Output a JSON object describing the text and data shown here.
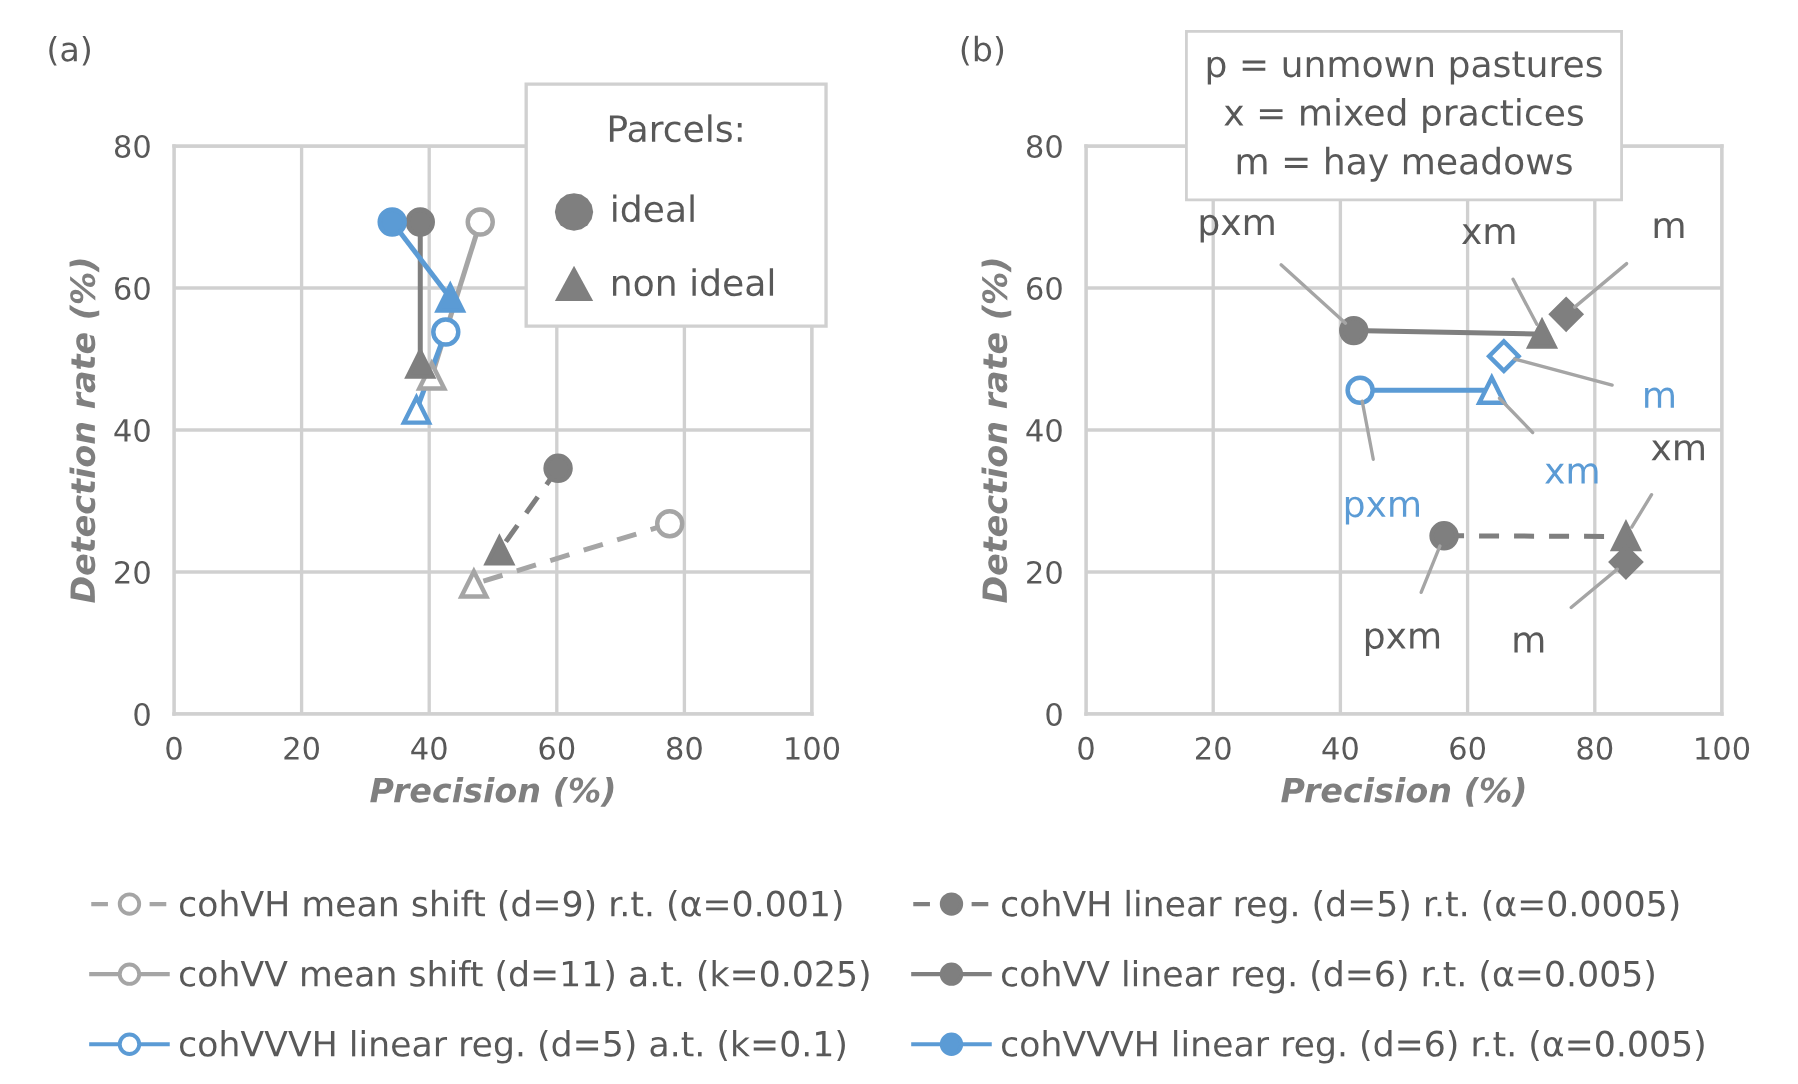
{
  "chart_data": [
    {
      "type": "line",
      "title": "(a)",
      "xlabel": "Precision (%)",
      "ylabel": "Detection rate (%)",
      "legend_title": "Parcels:",
      "annotations": [
        "ideal",
        "non ideal"
      ],
      "xlim": [
        0,
        100
      ],
      "xticks": [
        0,
        20,
        40,
        60,
        80,
        100
      ],
      "ylim": [
        0,
        80
      ],
      "yticks": [
        0,
        20,
        40,
        60,
        80
      ],
      "grid": true,
      "legend": "bottom",
      "series": [
        {
          "name": "cohVH mean shift (d=9) r.t. (α=0.001)",
          "color": "#a5a5a5",
          "x": [
            77.7,
            47
          ],
          "values": [
            26.8,
            18.3
          ],
          "colors": [
            "#ffffff",
            "#ffffff"
          ],
          "marker": [
            "circle",
            "triangle"
          ],
          "line_style": "dashed"
        },
        {
          "name": "cohVH linear reg. (d=5) r.t. (α=0.0005)",
          "color": "#7f7f7f",
          "x": [
            60.2,
            51
          ],
          "values": [
            34.6,
            23
          ],
          "colors": [
            "#7f7f7f",
            "#7f7f7f"
          ],
          "marker": [
            "circle",
            "triangle"
          ],
          "line_style": "dashed"
        },
        {
          "name": "cohVV mean shift (d=11) a.t. (k=0.025)",
          "color": "#a5a5a5",
          "x": [
            48,
            40.4
          ],
          "values": [
            69.3,
            47.6
          ],
          "colors": [
            "#ffffff",
            "#ffffff"
          ],
          "marker": [
            "circle",
            "triangle"
          ],
          "line_style": "solid"
        },
        {
          "name": "cohVV linear reg. (d=6) r.t. (α=0.005)",
          "color": "#7f7f7f",
          "x": [
            38.6,
            38.6
          ],
          "values": [
            69.3,
            49.3
          ],
          "colors": [
            "#7f7f7f",
            "#7f7f7f"
          ],
          "marker": [
            "circle",
            "triangle"
          ],
          "line_style": "solid"
        },
        {
          "name": "cohVVVH linear reg. (d=5) a.t. (k=0.1)",
          "color": "#5b9bd5",
          "x": [
            42.6,
            38
          ],
          "values": [
            53.8,
            42.8
          ],
          "colors": [
            "#ffffff",
            "#ffffff"
          ],
          "marker": [
            "circle",
            "triangle"
          ],
          "line_style": "solid"
        },
        {
          "name": "cohVVVH linear reg. (d=6) r.t. (α=0.005)",
          "color": "#5b9bd5",
          "x": [
            34.2,
            43.3
          ],
          "values": [
            69.3,
            58.6
          ],
          "colors": [
            "#5b9bd5",
            "#5b9bd5"
          ],
          "marker": [
            "circle",
            "triangle"
          ],
          "line_style": "solid"
        }
      ]
    },
    {
      "type": "line",
      "title": "(b)",
      "xlabel": "Precision (%)",
      "ylabel": "Detection rate (%)",
      "xlim": [
        0,
        100
      ],
      "xticks": [
        0,
        20,
        40,
        60,
        80,
        100
      ],
      "ylim": [
        0,
        80
      ],
      "yticks": [
        0,
        20,
        40,
        60,
        80
      ],
      "grid": true,
      "annotations": [
        "p = unmown pastures",
        "x = mixed practices",
        "m = hay meadows",
        {
          "text": "pxm",
          "x": 42.1,
          "y": 54
        },
        {
          "text": "xm",
          "x": 71.7,
          "y": 53.5
        },
        {
          "text": "m",
          "x": 75.5,
          "y": 56.3
        },
        {
          "text": "m",
          "x": 65.7,
          "y": 50.4
        },
        {
          "text": "xm",
          "x": 63.8,
          "y": 45.6
        },
        {
          "text": "pxm",
          "x": 43.1,
          "y": 45.6
        },
        {
          "text": "pxm",
          "x": 56.3,
          "y": 25.1
        },
        {
          "text": "xm",
          "x": 84.9,
          "y": 25
        },
        {
          "text": "m",
          "x": 84.9,
          "y": 21.4
        }
      ],
      "series": [
        {
          "color": "#7f7f7f",
          "x": [
            42.1,
            71.7
          ],
          "values": [
            54,
            53.5
          ],
          "colors": [
            "#7f7f7f",
            "#7f7f7f"
          ],
          "marker": [
            "circle",
            "triangle"
          ],
          "line_style": "solid"
        },
        {
          "type": "scatter",
          "color": "#7f7f7f",
          "x": [
            75.5
          ],
          "values": [
            56.3
          ],
          "colors": [
            "#7f7f7f"
          ],
          "marker": [
            "diamond"
          ]
        },
        {
          "color": "#5b9bd5",
          "x": [
            43.1,
            63.8
          ],
          "values": [
            45.6,
            45.6
          ],
          "colors": [
            "#ffffff",
            "#ffffff"
          ],
          "marker": [
            "circle",
            "triangle"
          ],
          "line_style": "solid"
        },
        {
          "type": "scatter",
          "color": "#5b9bd5",
          "x": [
            65.7
          ],
          "values": [
            50.4
          ],
          "colors": [
            "#ffffff"
          ],
          "marker": [
            "diamond"
          ]
        },
        {
          "color": "#7f7f7f",
          "x": [
            56.3,
            84.9
          ],
          "values": [
            25.1,
            25
          ],
          "colors": [
            "#7f7f7f",
            "#7f7f7f"
          ],
          "marker": [
            "circle",
            "triangle"
          ],
          "line_style": "dashed"
        },
        {
          "type": "scatter",
          "color": "#7f7f7f",
          "x": [
            84.9
          ],
          "values": [
            21.4
          ],
          "colors": [
            "#7f7f7f"
          ],
          "marker": [
            "diamond"
          ]
        }
      ]
    }
  ]
}
